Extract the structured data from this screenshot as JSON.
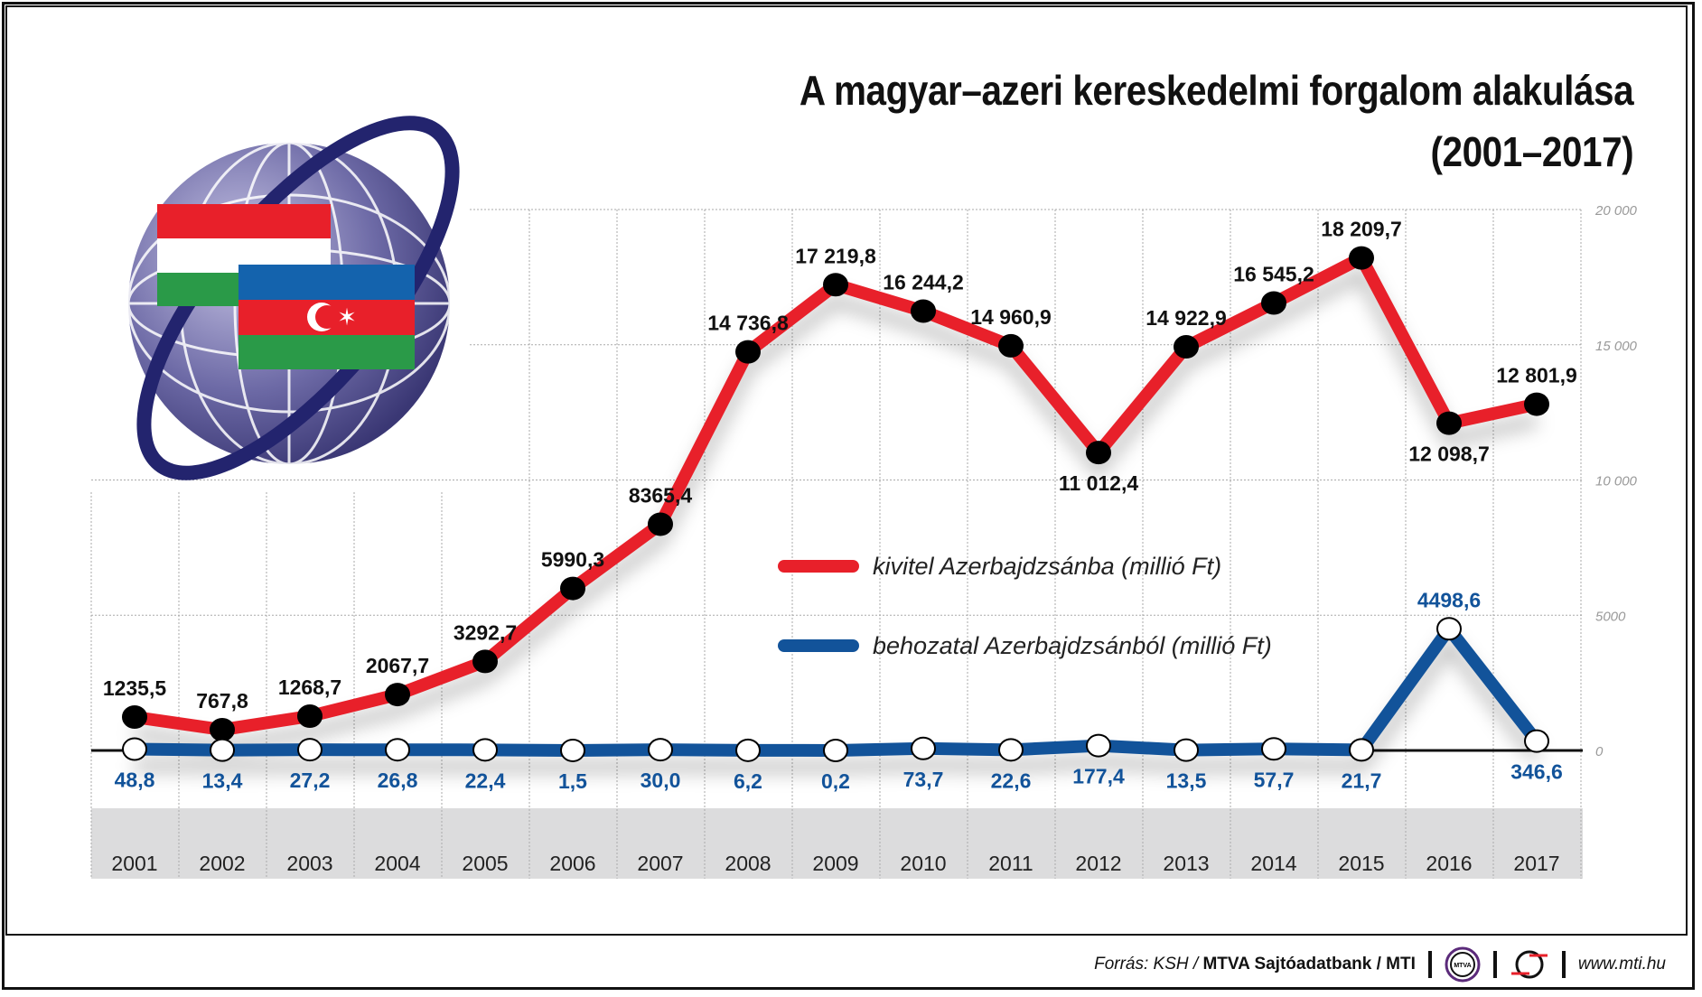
{
  "chart_data": {
    "type": "line",
    "title": "A magyar–azeri kereskedelmi forgalom alakulása",
    "subtitle": "(2001–2017)",
    "categories": [
      "2001",
      "2002",
      "2003",
      "2004",
      "2005",
      "2006",
      "2007",
      "2008",
      "2009",
      "2010",
      "2011",
      "2012",
      "2013",
      "2014",
      "2015",
      "2016",
      "2017"
    ],
    "series": [
      {
        "name": "kivitel Azerbajdzsánba (millió Ft)",
        "color": "#e8202a",
        "values": [
          1235.5,
          767.8,
          1268.7,
          2067.7,
          3292.7,
          5990.3,
          8365.4,
          14736.8,
          17219.8,
          16244.2,
          14960.9,
          11012.4,
          14922.9,
          16545.2,
          18209.7,
          12098.7,
          12801.9
        ],
        "labels": [
          "1235,5",
          "767,8",
          "1268,7",
          "2067,7",
          "3292,7",
          "5990,3",
          "8365,4",
          "14 736,8",
          "17 219,8",
          "16 244,2",
          "14 960,9",
          "11 012,4",
          "14 922,9",
          "16 545,2",
          "18 209,7",
          "12 098,7",
          "12 801,9"
        ]
      },
      {
        "name": "behozatal Azerbajdzsánból (millió Ft)",
        "color": "#12539a",
        "values": [
          48.8,
          13.4,
          27.2,
          26.8,
          22.4,
          1.5,
          30.0,
          6.2,
          0.2,
          73.7,
          22.6,
          177.4,
          13.5,
          57.7,
          21.7,
          4498.6,
          346.6
        ],
        "labels": [
          "48,8",
          "13,4",
          "27,2",
          "26,8",
          "22,4",
          "1,5",
          "30,0",
          "6,2",
          "0,2",
          "73,7",
          "22,6",
          "177,4",
          "13,5",
          "57,7",
          "21,7",
          "4498,6",
          "346,6"
        ]
      }
    ],
    "yticks": [
      "0",
      "5000",
      "10 000",
      "15 000",
      "20 000"
    ],
    "ylim": [
      0,
      20000
    ],
    "grid": true,
    "legend": "center"
  },
  "footer": {
    "source_prefix": "Forrás: KSH / ",
    "source_bold": "MTVA Sajtóadatbank / MTI",
    "mtva_logo": "MTVA",
    "website": "www.mti.hu"
  }
}
